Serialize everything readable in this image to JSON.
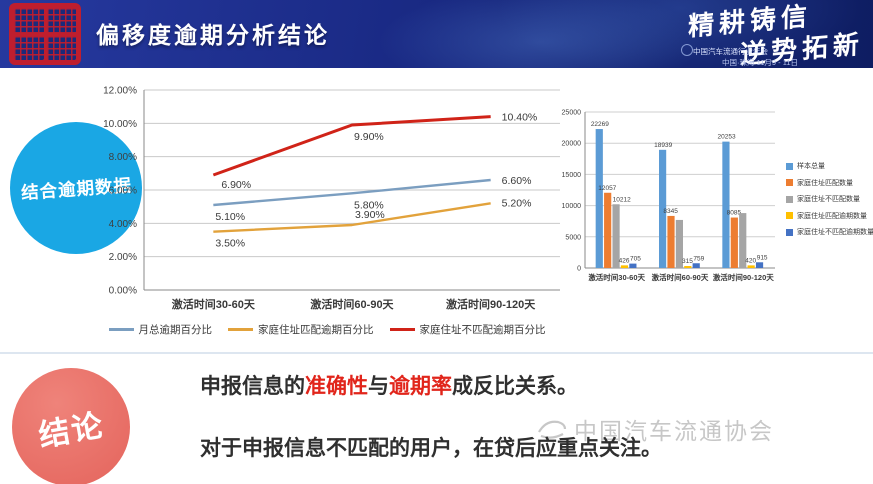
{
  "header": {
    "title": "偏移度逾期分析结论",
    "slogan_line1": "精耕铸信",
    "slogan_line2": "逆势拓新",
    "event_name": "中国汽车流通行业年会",
    "event_info": "中国·珠海  11月9 - 11日"
  },
  "left_badge": {
    "label": "结合逾期数据",
    "color": "#1AA7E4"
  },
  "conclusion": {
    "badge": "结论",
    "line1_a": "申报信息的",
    "line1_b": "准确性",
    "line1_c": "与",
    "line1_d": "逾期率",
    "line1_e": "成反比关系。",
    "line2": "对于申报信息不匹配的用户，在贷后应重点关注。"
  },
  "watermark": {
    "text": "中国汽车流通协会"
  },
  "colors": {
    "header_navy": "#1A2A85",
    "badge_blue": "#1AA7E4",
    "badge_red": "#E4655C",
    "highlight_red": "#E1251B"
  },
  "chart_data": [
    {
      "type": "line",
      "title": "",
      "xlabel": "",
      "ylabel": "",
      "categories": [
        "激活时间30-60天",
        "激活时间60-90天",
        "激活时间90-120天"
      ],
      "series": [
        {
          "name": "月总逾期百分比",
          "color": "#7B9EC0",
          "values": [
            5.1,
            5.8,
            6.6
          ],
          "labels": [
            "5.10%",
            "5.80%",
            "6.60%"
          ]
        },
        {
          "name": "家庭住址匹配逾期百分比",
          "color": "#E2A23B",
          "values": [
            3.5,
            3.9,
            5.2
          ],
          "labels": [
            "3.50%",
            "3.90%",
            "5.20%"
          ]
        },
        {
          "name": "家庭住址不匹配逾期百分比",
          "color": "#D02318",
          "values": [
            6.9,
            9.9,
            10.4
          ],
          "labels": [
            "6.90%",
            "9.90%",
            "10.40%"
          ]
        }
      ],
      "ylim": [
        0,
        12
      ],
      "ytick_step": 2,
      "ytick_labels": [
        "0.00%",
        "2.00%",
        "4.00%",
        "6.00%",
        "8.00%",
        "10.00%",
        "12.00%"
      ],
      "grid": true,
      "legend_position": "bottom"
    },
    {
      "type": "bar",
      "title": "",
      "xlabel": "",
      "ylabel": "",
      "categories": [
        "激活时间30-60天",
        "激活时间60-90天",
        "激活时间90-120天"
      ],
      "series": [
        {
          "name": "样本总量",
          "color": "#5B9BD5",
          "values": [
            22269,
            18939,
            20253
          ],
          "labels": [
            "22269",
            "18939",
            "20253"
          ]
        },
        {
          "name": "家庭住址匹配数量",
          "color": "#ED7D31",
          "values": [
            12057,
            8345,
            8085
          ],
          "labels": [
            "12057",
            "8345",
            "8085"
          ]
        },
        {
          "name": "家庭住址不匹配数量",
          "color": "#A5A5A5",
          "values": [
            10212,
            7700,
            8800
          ],
          "labels": [
            "10212",
            "",
            ""
          ]
        },
        {
          "name": "家庭住址匹配逾期数量",
          "color": "#FFC000",
          "values": [
            426,
            315,
            420
          ],
          "labels": [
            "426",
            "315",
            "420"
          ]
        },
        {
          "name": "家庭住址不匹配逾期数量",
          "color": "#4472C4",
          "values": [
            705,
            759,
            915
          ],
          "labels": [
            "705",
            "759",
            "915"
          ]
        }
      ],
      "ylim": [
        0,
        25000
      ],
      "ytick_step": 5000,
      "ytick_labels": [
        "0",
        "5000",
        "10000",
        "15000",
        "20000",
        "25000"
      ],
      "grid": true,
      "legend_position": "right"
    }
  ]
}
